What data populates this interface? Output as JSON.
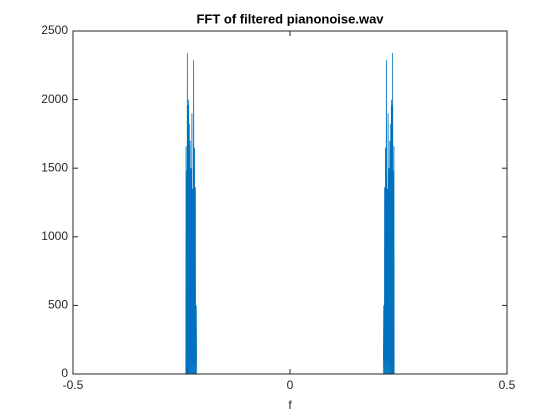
{
  "chart_data": {
    "type": "line",
    "title": "FFT of filtered pianonoise.wav",
    "x_label": "f",
    "series": [
      {
        "color": "#0072bd",
        "x": [
          -0.5,
          -0.245,
          -0.24,
          -0.2395,
          -0.239,
          -0.238,
          -0.2375,
          -0.2365,
          -0.236,
          -0.235,
          -0.2345,
          -0.2335,
          -0.233,
          -0.232,
          -0.2315,
          -0.23,
          -0.2295,
          -0.228,
          -0.2275,
          -0.226,
          -0.2255,
          -0.224,
          -0.2235,
          -0.222,
          -0.2215,
          -0.22,
          -0.2195,
          -0.218,
          -0.2175,
          -0.216,
          -0.215,
          0.215,
          0.216,
          0.2175,
          0.218,
          0.2195,
          0.22,
          0.2215,
          0.222,
          0.2235,
          0.224,
          0.2255,
          0.226,
          0.2275,
          0.228,
          0.2295,
          0.23,
          0.2315,
          0.232,
          0.233,
          0.2335,
          0.2345,
          0.235,
          0.236,
          0.2365,
          0.2375,
          0.238,
          0.239,
          0.2395,
          0.24,
          0.245,
          0.5
        ],
        "values": [
          0,
          0,
          0,
          1660,
          0,
          1480,
          0,
          2340,
          0,
          1960,
          0,
          2000,
          0,
          1820,
          0,
          1700,
          0,
          1500,
          0,
          1900,
          0,
          1350,
          0,
          2290,
          0,
          1650,
          0,
          1360,
          0,
          500,
          0,
          0,
          500,
          0,
          1360,
          0,
          1650,
          0,
          2290,
          0,
          1350,
          0,
          1900,
          0,
          1500,
          0,
          1700,
          0,
          1820,
          0,
          2000,
          0,
          1960,
          0,
          2340,
          0,
          1480,
          0,
          1660,
          0,
          0,
          0
        ]
      }
    ],
    "xlim": [
      -0.5,
      0.5
    ],
    "xticks": [
      -0.5,
      0,
      0.5
    ],
    "ylim": [
      0,
      2500
    ],
    "yticks": [
      0,
      500,
      1000,
      1500,
      2000,
      2500
    ]
  }
}
